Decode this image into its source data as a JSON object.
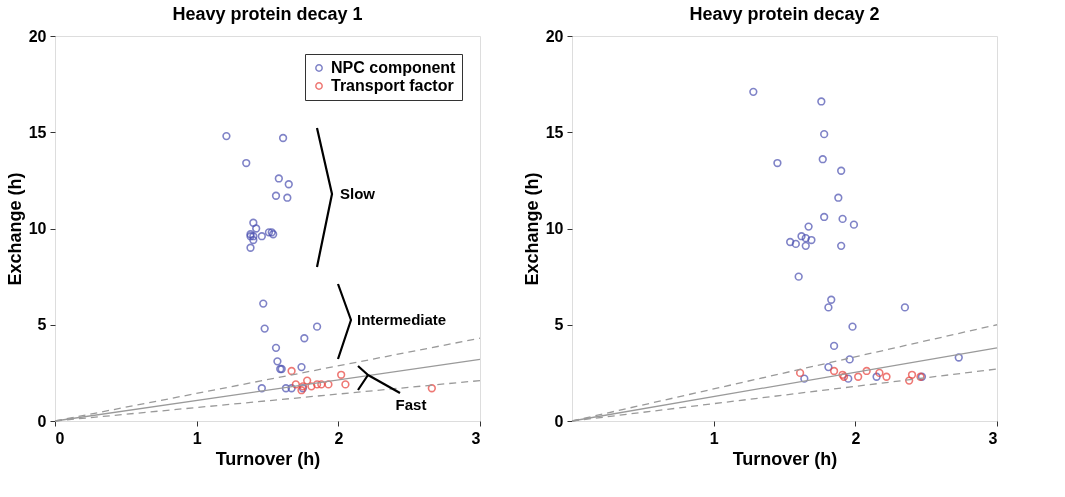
{
  "chart_data": [
    {
      "type": "scatter",
      "title": "Heavy protein decay 1",
      "xlabel": "Turnover (h)",
      "ylabel": "Exchange (h)",
      "xlim": [
        0,
        3
      ],
      "ylim": [
        0,
        20
      ],
      "xticks": [
        0,
        1,
        2,
        3
      ],
      "yticks": [
        0,
        5,
        10,
        15,
        20
      ],
      "grid": false,
      "legend": "top right",
      "annotations": [
        "Slow",
        "Intermediate",
        "Fast"
      ],
      "series": [
        {
          "name": "NPC component",
          "color": "#4a4fb0",
          "type": "scatter",
          "marker": "circle",
          "x": [
            1.21,
            1.61,
            1.35,
            1.58,
            1.65,
            1.56,
            1.64,
            1.4,
            1.42,
            1.38,
            1.4,
            1.46,
            1.51,
            1.54,
            1.4,
            1.38,
            1.53,
            1.38,
            1.47,
            1.48,
            1.85,
            1.76,
            1.56,
            1.57,
            1.6,
            1.59,
            1.74,
            1.46,
            1.63,
            1.67,
            1.75
          ],
          "values": [
            14.8,
            14.7,
            13.4,
            12.6,
            12.3,
            11.7,
            11.6,
            10.3,
            10.0,
            9.7,
            9.6,
            9.6,
            9.8,
            9.7,
            9.4,
            9.0,
            9.8,
            9.6,
            6.1,
            4.8,
            4.9,
            4.3,
            3.8,
            3.1,
            2.7,
            2.7,
            2.8,
            1.7,
            1.7,
            1.7,
            1.7
          ]
        },
        {
          "name": "Transport factor",
          "color": "#e8403a",
          "type": "scatter",
          "marker": "circle",
          "x": [
            1.67,
            1.78,
            1.7,
            1.75,
            1.74,
            1.81,
            1.85,
            1.88,
            1.93,
            2.02,
            2.05,
            2.66
          ],
          "values": [
            2.6,
            2.1,
            1.9,
            1.8,
            1.6,
            1.8,
            1.9,
            1.9,
            1.9,
            2.4,
            1.9,
            1.7
          ]
        },
        {
          "color": "#9a9a9a",
          "type": "line",
          "marker": "none",
          "line_style": "dashed",
          "x": [
            0,
            3
          ],
          "values": [
            0,
            4.3
          ]
        },
        {
          "color": "#9a9a9a",
          "type": "line",
          "marker": "none",
          "line_style": "solid",
          "x": [
            0,
            3
          ],
          "values": [
            0,
            3.2
          ]
        },
        {
          "color": "#9a9a9a",
          "type": "line",
          "marker": "none",
          "line_style": "dashed",
          "x": [
            0,
            3
          ],
          "values": [
            0,
            2.1
          ]
        }
      ]
    },
    {
      "type": "scatter",
      "title": "Heavy protein decay 2",
      "xlabel": "Turnover (h)",
      "ylabel": "Exchange (h)",
      "xlim": [
        0,
        3
      ],
      "ylim": [
        0,
        20
      ],
      "xticks": [
        1,
        2,
        3
      ],
      "yticks": [
        0,
        5,
        10,
        15,
        20
      ],
      "grid": false,
      "series": [
        {
          "color": "#4a4fb0",
          "type": "scatter",
          "marker": "circle",
          "x": [
            1.28,
            1.76,
            1.78,
            1.45,
            1.77,
            1.9,
            1.88,
            1.78,
            1.91,
            1.99,
            1.67,
            1.62,
            1.69,
            1.65,
            1.54,
            1.58,
            1.65,
            1.9,
            1.6,
            1.83,
            1.81,
            2.35,
            1.98,
            1.85,
            1.96,
            1.81,
            2.73,
            1.64,
            1.95,
            2.15,
            2.47
          ],
          "values": [
            17.1,
            16.6,
            14.9,
            13.4,
            13.6,
            13.0,
            11.6,
            10.6,
            10.5,
            10.2,
            10.1,
            9.6,
            9.4,
            9.5,
            9.3,
            9.2,
            9.1,
            9.1,
            7.5,
            6.3,
            5.9,
            5.9,
            4.9,
            3.9,
            3.2,
            2.8,
            3.3,
            2.2,
            2.2,
            2.3,
            2.3
          ]
        },
        {
          "color": "#e8403a",
          "type": "scatter",
          "marker": "circle",
          "x": [
            1.61,
            1.85,
            1.91,
            1.92,
            2.02,
            2.08,
            2.17,
            2.22,
            2.38,
            2.4,
            2.46
          ],
          "values": [
            2.5,
            2.6,
            2.4,
            2.3,
            2.3,
            2.6,
            2.5,
            2.3,
            2.1,
            2.4,
            2.3
          ]
        },
        {
          "color": "#9a9a9a",
          "type": "line",
          "marker": "none",
          "line_style": "dashed",
          "x": [
            0,
            3
          ],
          "values": [
            0,
            5.0
          ]
        },
        {
          "color": "#9a9a9a",
          "type": "line",
          "marker": "none",
          "line_style": "solid",
          "x": [
            0,
            3
          ],
          "values": [
            0,
            3.8
          ]
        },
        {
          "color": "#9a9a9a",
          "type": "line",
          "marker": "none",
          "line_style": "dashed",
          "x": [
            0,
            3
          ],
          "values": [
            0,
            2.7
          ]
        }
      ]
    }
  ]
}
